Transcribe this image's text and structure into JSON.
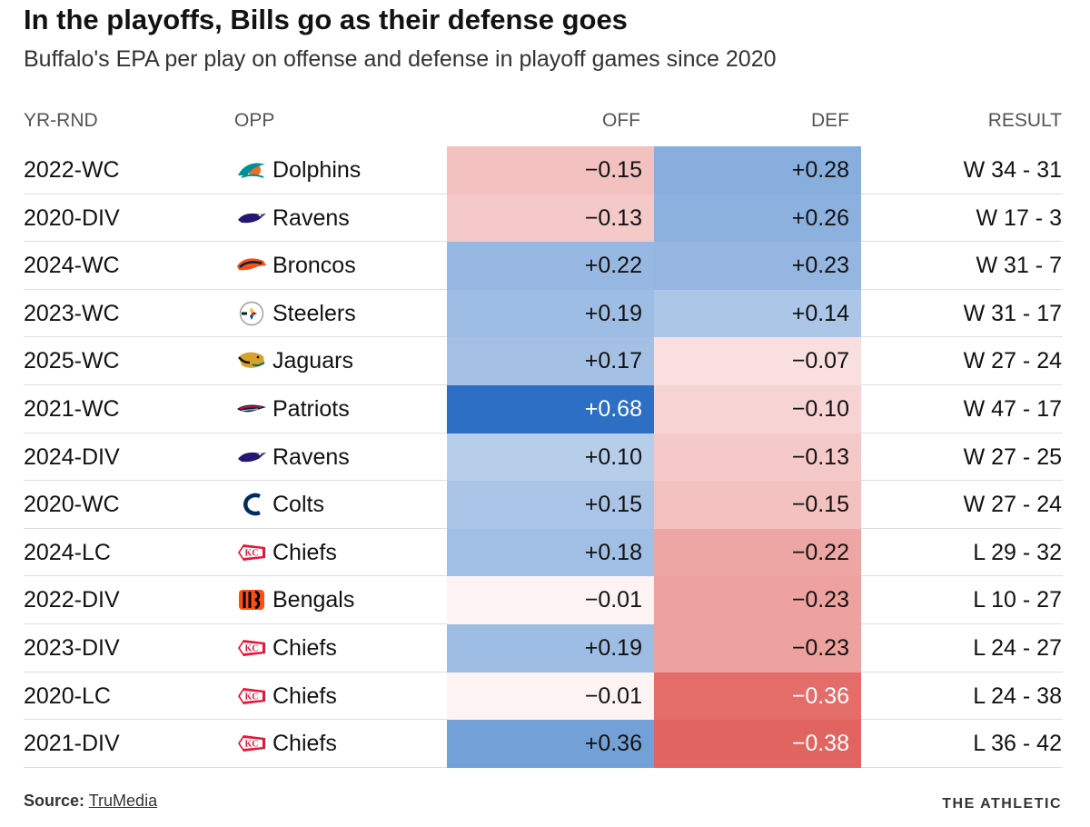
{
  "title": "In the playoffs, Bills go as their defense goes",
  "subtitle": "Buffalo's EPA per play on offense and defense in playoff games since 2020",
  "headers": {
    "yr_rnd": "YR-RND",
    "opp": "OPP",
    "off": "OFF",
    "def": "DEF",
    "result": "RESULT"
  },
  "colors": {
    "positive": "#2c6fc4",
    "negative": "#e26460",
    "neutral": "#ffffff"
  },
  "chart_data": {
    "type": "table",
    "title": "In the playoffs, Bills go as their defense goes",
    "subtitle": "Buffalo's EPA per play on offense and defense in playoff games since 2020",
    "columns": [
      "YR-RND",
      "OPP",
      "OFF",
      "DEF",
      "RESULT"
    ],
    "rows": [
      {
        "yr_rnd": "2022-WC",
        "opp": "Dolphins",
        "logo": "dolphins-logo",
        "off": -0.15,
        "off_label": "−0.15",
        "def": 0.28,
        "def_label": "+0.28",
        "result": "W 34 - 31"
      },
      {
        "yr_rnd": "2020-DIV",
        "opp": "Ravens",
        "logo": "ravens-logo",
        "off": -0.13,
        "off_label": "−0.13",
        "def": 0.26,
        "def_label": "+0.26",
        "result": "W 17 - 3"
      },
      {
        "yr_rnd": "2024-WC",
        "opp": "Broncos",
        "logo": "broncos-logo",
        "off": 0.22,
        "off_label": "+0.22",
        "def": 0.23,
        "def_label": "+0.23",
        "result": "W 31 - 7"
      },
      {
        "yr_rnd": "2023-WC",
        "opp": "Steelers",
        "logo": "steelers-logo",
        "off": 0.19,
        "off_label": "+0.19",
        "def": 0.14,
        "def_label": "+0.14",
        "result": "W 31 - 17"
      },
      {
        "yr_rnd": "2025-WC",
        "opp": "Jaguars",
        "logo": "jaguars-logo",
        "off": 0.17,
        "off_label": "+0.17",
        "def": -0.07,
        "def_label": "−0.07",
        "result": "W 27 - 24"
      },
      {
        "yr_rnd": "2021-WC",
        "opp": "Patriots",
        "logo": "patriots-logo",
        "off": 0.68,
        "off_label": "+0.68",
        "def": -0.1,
        "def_label": "−0.10",
        "result": "W 47 - 17"
      },
      {
        "yr_rnd": "2024-DIV",
        "opp": "Ravens",
        "logo": "ravens-logo",
        "off": 0.1,
        "off_label": "+0.10",
        "def": -0.13,
        "def_label": "−0.13",
        "result": "W 27 - 25"
      },
      {
        "yr_rnd": "2020-WC",
        "opp": "Colts",
        "logo": "colts-logo",
        "off": 0.15,
        "off_label": "+0.15",
        "def": -0.15,
        "def_label": "−0.15",
        "result": "W 27 - 24"
      },
      {
        "yr_rnd": "2024-LC",
        "opp": "Chiefs",
        "logo": "chiefs-logo",
        "off": 0.18,
        "off_label": "+0.18",
        "def": -0.22,
        "def_label": "−0.22",
        "result": "L 29 - 32"
      },
      {
        "yr_rnd": "2022-DIV",
        "opp": "Bengals",
        "logo": "bengals-logo",
        "off": -0.01,
        "off_label": "−0.01",
        "def": -0.23,
        "def_label": "−0.23",
        "result": "L 10 - 27"
      },
      {
        "yr_rnd": "2023-DIV",
        "opp": "Chiefs",
        "logo": "chiefs-logo",
        "off": 0.19,
        "off_label": "+0.19",
        "def": -0.23,
        "def_label": "−0.23",
        "result": "L 24 - 27"
      },
      {
        "yr_rnd": "2020-LC",
        "opp": "Chiefs",
        "logo": "chiefs-logo",
        "off": -0.01,
        "off_label": "−0.01",
        "def": -0.36,
        "def_label": "−0.36",
        "result": "L 24 - 38"
      },
      {
        "yr_rnd": "2021-DIV",
        "opp": "Chiefs",
        "logo": "chiefs-logo",
        "off": 0.36,
        "off_label": "+0.36",
        "def": -0.38,
        "def_label": "−0.38",
        "result": "L 36 - 42"
      }
    ]
  },
  "footer": {
    "source_label": "Source:",
    "source_name": "TruMedia",
    "brand": "THE ATHLETIC"
  }
}
